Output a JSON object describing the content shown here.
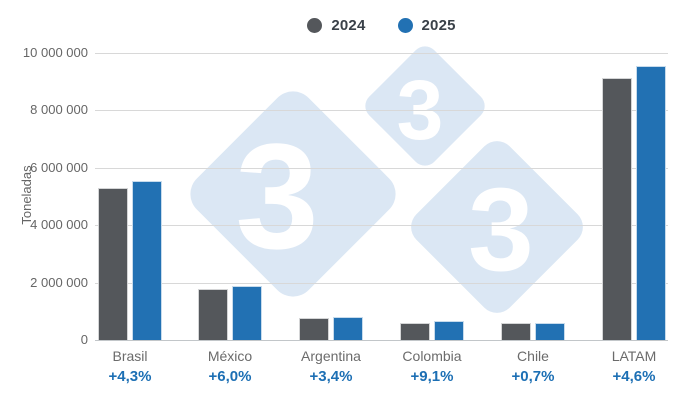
{
  "chart_data": {
    "type": "bar",
    "title": "",
    "ylabel": "Toneladas",
    "categories": [
      "Brasil",
      "México",
      "Argentina",
      "Colombia",
      "Chile",
      "LATAM"
    ],
    "growth_labels": [
      "+4,3%",
      "+6,0%",
      "+3,4%",
      "+9,1%",
      "+0,7%",
      "+4,6%"
    ],
    "series": [
      {
        "name": "2024",
        "color": "#54575B",
        "values": [
          5300000,
          1790000,
          780000,
          600000,
          580000,
          9130000
        ]
      },
      {
        "name": "2025",
        "color": "#2271B3",
        "values": [
          5528000,
          1897000,
          806000,
          655000,
          584000,
          9550000
        ]
      }
    ],
    "ylim": [
      0,
      10000000
    ],
    "ytick_step": 2000000,
    "ytick_labels": [
      "0",
      "2 000 000",
      "4 000 000",
      "6 000 000",
      "8 000 000",
      "10 000 000"
    ],
    "grid": "horizontal",
    "legend_position": "top-center",
    "number_format": "space-thousands"
  },
  "watermark": {
    "name": "333-logo-watermark",
    "digits": [
      "3",
      "3",
      "3"
    ],
    "fill": "#DBE7F4",
    "digit_color": "#FFFFFF"
  },
  "colors": {
    "bar_2024": "#54575B",
    "bar_2025": "#2271B3",
    "growth_label": "#1C6FB4",
    "axis_text": "#666666",
    "category_text": "#6B6B6B",
    "gridline": "#D8D8D8",
    "axis_line": "#C2C6C9",
    "legend_text": "#3A4149",
    "background": "#FFFFFF"
  }
}
